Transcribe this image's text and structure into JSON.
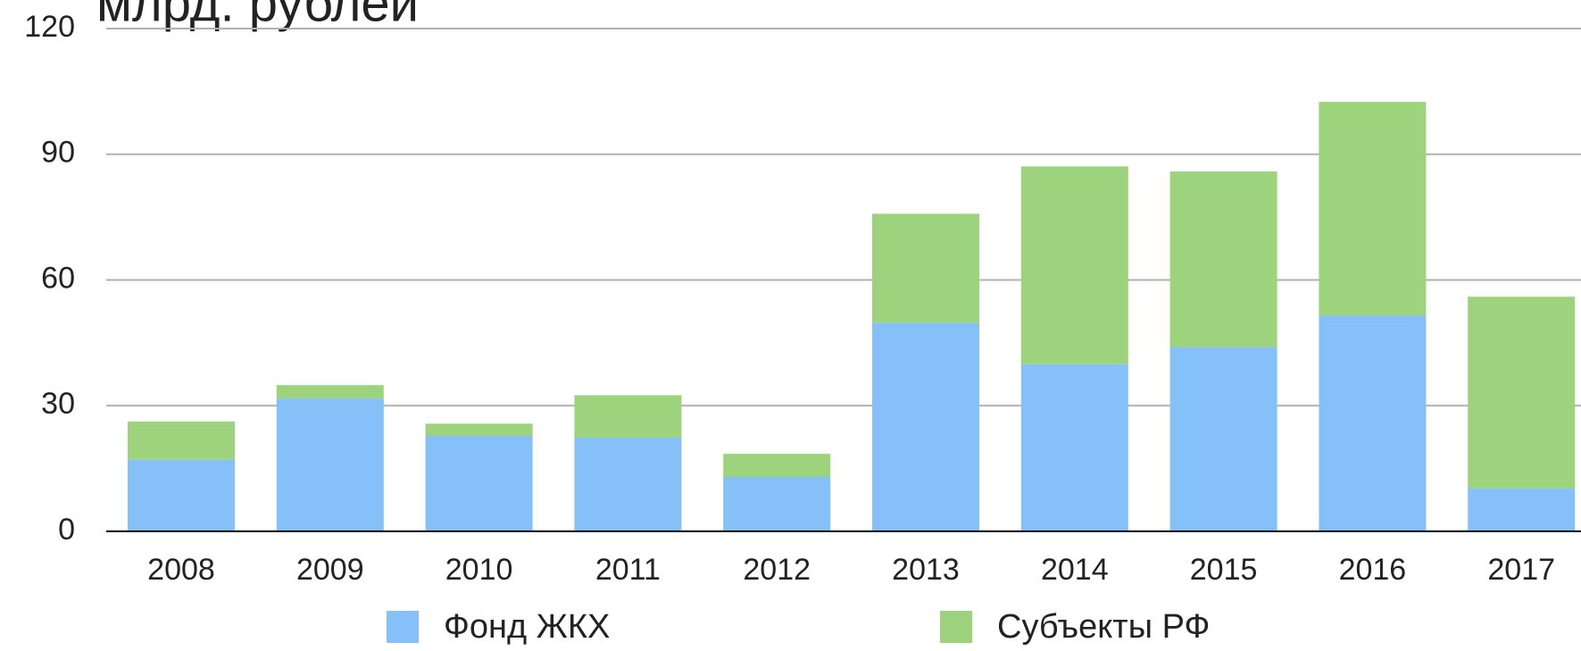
{
  "chart_data": {
    "type": "stacked_bar",
    "title": "млрд. рублей",
    "categories": [
      "2008",
      "2009",
      "2010",
      "2011",
      "2012",
      "2013",
      "2014",
      "2015",
      "2016",
      "2017"
    ],
    "series": [
      {
        "name": "Фонд ЖКХ",
        "color": "#85c0f9",
        "values": [
          17.1,
          31.7,
          22.8,
          22.4,
          13,
          49.8,
          39.9,
          44,
          51.5,
          10.3
        ]
      },
      {
        "name": "Субъекты РФ",
        "color": "#9dd37d",
        "values": [
          9.1,
          3.2,
          2.9,
          10.1,
          5.5,
          26,
          47.2,
          41.9,
          51,
          45.7
        ]
      }
    ],
    "ylim": [
      0,
      120
    ],
    "yticks": [
      0,
      30,
      60,
      90,
      120
    ],
    "grid": true
  }
}
